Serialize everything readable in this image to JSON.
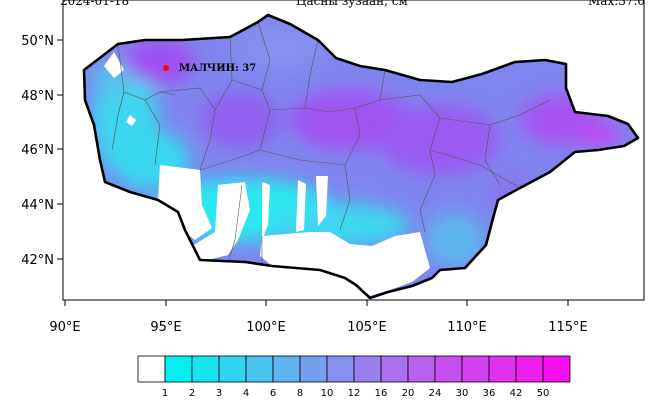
{
  "header": {
    "date": "2024-01-18",
    "title": "Цасны зузаан, см",
    "max_label": "Max:37.0"
  },
  "map": {
    "lon_ticks": [
      "90°E",
      "95°E",
      "100°E",
      "105°E",
      "110°E",
      "115°E"
    ],
    "lat_ticks": [
      "50°N",
      "48°N",
      "46°N",
      "44°N",
      "42°N"
    ],
    "station": {
      "label": "МАЛЧИН: 37",
      "marker_color": "#ff0000"
    }
  },
  "colorbar": {
    "labels": [
      "1",
      "2",
      "3",
      "4",
      "6",
      "8",
      "10",
      "12",
      "16",
      "20",
      "24",
      "30",
      "36",
      "42",
      "50"
    ],
    "colors": [
      "#ffffff",
      "#00f0f0",
      "#18e4ef",
      "#30d4ef",
      "#48c4ef",
      "#60b4ef",
      "#74a0ef",
      "#8890ef",
      "#9a80ef",
      "#aa70ef",
      "#b860ef",
      "#c650ef",
      "#d440f0",
      "#e230f0",
      "#ee20f0",
      "#f810f0"
    ]
  },
  "colors": {
    "snow_high": "#a055f0",
    "snow_mid": "#6e8cee",
    "snow_low": "#28e6f0",
    "no_snow": "#ffffff",
    "border": "#000000"
  }
}
